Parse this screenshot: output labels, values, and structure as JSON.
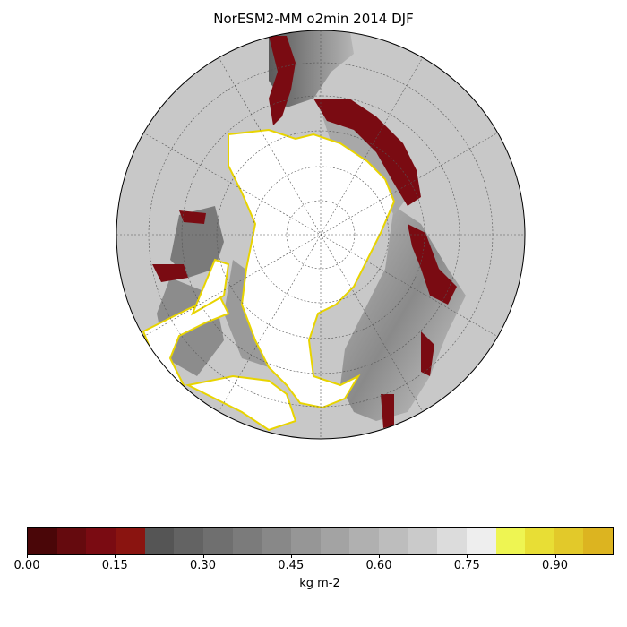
{
  "title": "NorESM2-MM o2min 2014 DJF",
  "colorbar": {
    "label": "kg m-2",
    "ticks": [
      "0.00",
      "0.15",
      "0.30",
      "0.45",
      "0.60",
      "0.75",
      "0.90"
    ],
    "colors": [
      "#4a0608",
      "#650a0e",
      "#7a0b12",
      "#8a1410",
      "#555555",
      "#636363",
      "#6f6f6f",
      "#7b7b7b",
      "#888888",
      "#969696",
      "#a3a3a3",
      "#b0b0b0",
      "#bdbdbd",
      "#cacaca",
      "#dcdcdc",
      "#eeeeee",
      "#eef552",
      "#e8de35",
      "#e2c92a",
      "#dcb420"
    ]
  },
  "map": {
    "projection": "north polar stereographic",
    "land_color": "#c8c8c8",
    "ice_color": "#ffffff",
    "low_o2_color": "#7a0b12",
    "sea_ice_edge_color": "#e8d400"
  }
}
